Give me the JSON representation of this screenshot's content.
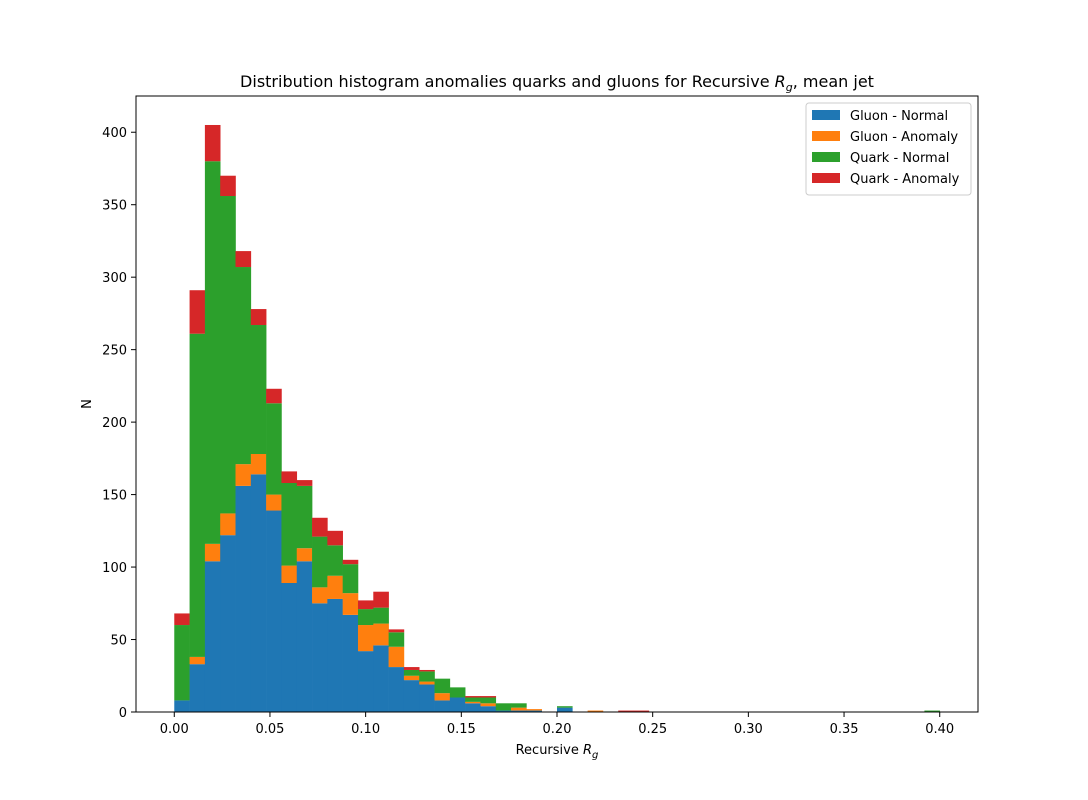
{
  "chart_data": {
    "type": "bar",
    "stacked": true,
    "title_prefix": "Distribution histogram anomalies quarks and gluons for Recursive ",
    "title_math_base": "R",
    "title_math_sub": "g",
    "title_suffix": ", mean jet",
    "xlabel_prefix": "Recursive ",
    "xlabel_math_base": "R",
    "xlabel_math_sub": "g",
    "ylabel": "N",
    "xlim": [
      -0.02,
      0.42
    ],
    "ylim": [
      0,
      425
    ],
    "xticks": [
      0.0,
      0.05,
      0.1,
      0.15,
      0.2,
      0.25,
      0.3,
      0.35,
      0.4
    ],
    "xtick_labels": [
      "0.00",
      "0.05",
      "0.10",
      "0.15",
      "0.20",
      "0.25",
      "0.30",
      "0.35",
      "0.40"
    ],
    "yticks": [
      0,
      50,
      100,
      150,
      200,
      250,
      300,
      350,
      400
    ],
    "ytick_labels": [
      "0",
      "50",
      "100",
      "150",
      "200",
      "250",
      "300",
      "350",
      "400"
    ],
    "grid": false,
    "legend_position": "top-right",
    "bin_width": 0.008,
    "bin_starts": [
      0.0,
      0.008,
      0.016,
      0.024,
      0.032,
      0.04,
      0.048,
      0.056,
      0.064,
      0.072,
      0.08,
      0.088,
      0.096,
      0.104,
      0.112,
      0.12,
      0.128,
      0.136,
      0.144,
      0.152,
      0.16,
      0.168,
      0.176,
      0.184,
      0.192,
      0.2,
      0.208,
      0.216,
      0.224,
      0.232,
      0.24,
      0.392
    ],
    "series": [
      {
        "name": "Gluon - Normal",
        "color": "#1f77b4",
        "values": [
          8,
          33,
          104,
          122,
          156,
          164,
          139,
          89,
          104,
          75,
          78,
          67,
          42,
          46,
          31,
          22,
          19,
          8,
          10,
          6,
          4,
          1,
          1,
          1,
          0,
          3,
          0,
          0,
          0,
          0,
          0,
          0
        ]
      },
      {
        "name": "Gluon - Anomaly",
        "color": "#ff7f0e",
        "values": [
          0,
          5,
          12,
          15,
          15,
          14,
          11,
          12,
          9,
          11,
          16,
          15,
          18,
          15,
          14,
          3,
          2,
          5,
          0,
          1,
          2,
          0,
          2,
          1,
          0,
          0,
          0,
          1,
          0,
          0,
          0,
          0
        ]
      },
      {
        "name": "Quark - Normal",
        "color": "#2ca02c",
        "values": [
          52,
          223,
          264,
          219,
          136,
          89,
          63,
          57,
          43,
          35,
          21,
          20,
          11,
          11,
          10,
          4,
          7,
          10,
          7,
          3,
          4,
          5,
          3,
          0,
          0,
          1,
          0,
          0,
          0,
          0,
          0,
          1
        ]
      },
      {
        "name": "Quark - Anomaly",
        "color": "#d62728",
        "values": [
          8,
          30,
          25,
          14,
          11,
          11,
          10,
          8,
          4,
          13,
          10,
          3,
          6,
          11,
          2,
          2,
          1,
          0,
          0,
          1,
          1,
          0,
          0,
          0,
          0,
          0,
          0,
          0,
          0,
          1,
          1,
          0
        ]
      }
    ]
  }
}
